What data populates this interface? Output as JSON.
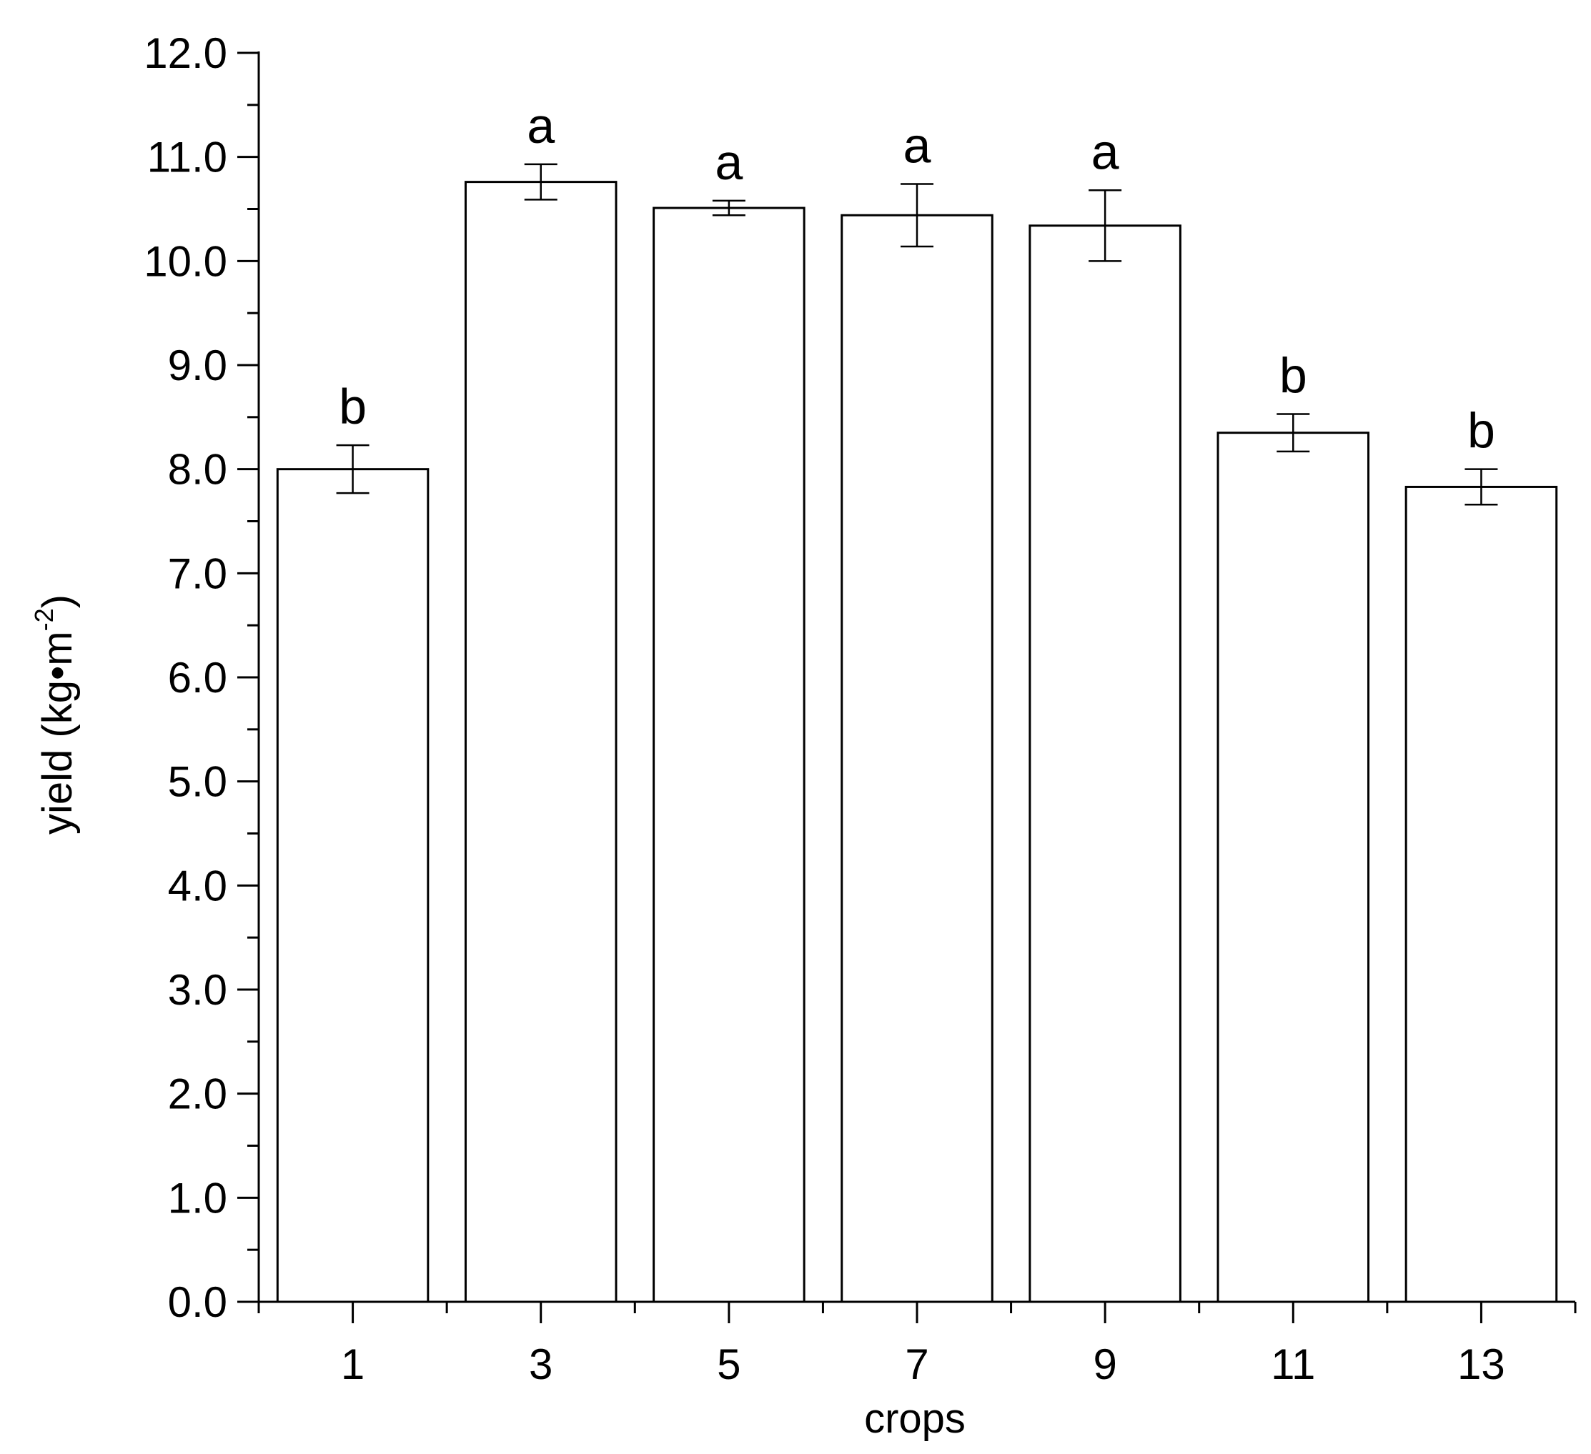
{
  "chart_data": {
    "type": "bar",
    "title": "",
    "xlabel": "crops",
    "ylabel": {
      "text": "yield (kg•m",
      "superscript": "-2",
      "suffix": ")"
    },
    "ylim": [
      0,
      12
    ],
    "yticks": [
      "0.0",
      "1.0",
      "2.0",
      "3.0",
      "4.0",
      "5.0",
      "6.0",
      "7.0",
      "8.0",
      "9.0",
      "10.0",
      "11.0",
      "12.0"
    ],
    "categories": [
      "1",
      "3",
      "5",
      "7",
      "9",
      "11",
      "13"
    ],
    "values": [
      8.0,
      10.76,
      10.51,
      10.44,
      10.34,
      8.35,
      7.83
    ],
    "errors": [
      0.23,
      0.17,
      0.07,
      0.3,
      0.34,
      0.18,
      0.17
    ],
    "significance_letters": [
      "b",
      "a",
      "a",
      "a",
      "a",
      "b",
      "b"
    ],
    "grid": false,
    "colors": {
      "bar_fill": "#ffffff",
      "bar_stroke": "#000000",
      "axis": "#000000"
    }
  }
}
